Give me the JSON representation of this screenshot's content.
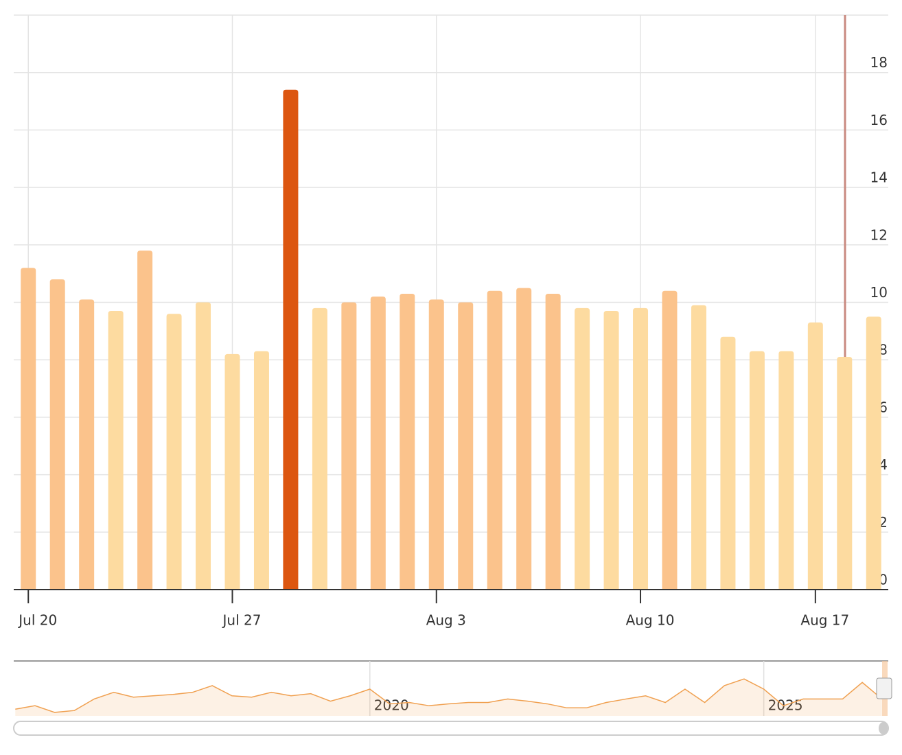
{
  "chart_data": {
    "type": "bar",
    "categories": [
      "Jul 20",
      null,
      null,
      null,
      null,
      null,
      null,
      "Jul 27",
      null,
      null,
      null,
      null,
      null,
      null,
      "Aug 3",
      null,
      null,
      null,
      null,
      null,
      null,
      "Aug 10",
      null,
      null,
      null,
      null,
      null,
      "Aug 17",
      null,
      null
    ],
    "values": [
      11.2,
      10.8,
      10.1,
      9.7,
      11.8,
      9.6,
      10.0,
      8.2,
      8.3,
      17.4,
      9.8,
      10.0,
      10.2,
      10.3,
      10.1,
      10.0,
      10.4,
      10.5,
      10.3,
      9.8,
      9.7,
      9.8,
      10.4,
      9.9,
      8.8,
      8.3,
      8.3,
      9.3,
      8.1,
      9.5
    ],
    "colors": [
      "#fbc38c",
      "#fbc38c",
      "#fbc38c",
      "#fddba0",
      "#fbc38c",
      "#fddba0",
      "#fddba0",
      "#fddba0",
      "#fddba0",
      "#dc5610",
      "#fddba0",
      "#fbc38c",
      "#fbc38c",
      "#fbc38c",
      "#fbc38c",
      "#fbc38c",
      "#fbc38c",
      "#fbc38c",
      "#fbc38c",
      "#fddba0",
      "#fddba0",
      "#fddba0",
      "#fbc38c",
      "#fddba0",
      "#fddba0",
      "#fddba0",
      "#fddba0",
      "#fddba0",
      "#fddba0",
      "#fddba0"
    ],
    "ylim": [
      0,
      20
    ],
    "yticks": [
      0,
      2,
      4,
      6,
      8,
      10,
      12,
      14,
      16,
      18
    ],
    "grid": true,
    "navigator": {
      "color": "#f0a050",
      "x": [
        2015.5,
        2015.75,
        2016,
        2016.25,
        2016.5,
        2016.75,
        2017,
        2017.25,
        2017.5,
        2017.75,
        2018,
        2018.25,
        2018.5,
        2018.75,
        2019,
        2019.25,
        2019.5,
        2019.75,
        2020,
        2020.25,
        2020.5,
        2020.75,
        2021,
        2021.25,
        2021.5,
        2021.75,
        2022,
        2022.25,
        2022.5,
        2022.75,
        2023,
        2023.25,
        2023.5,
        2023.75,
        2024,
        2024.25,
        2024.5,
        2024.75,
        2025,
        2025.25,
        2025.5,
        2025.75,
        2026,
        2026.25,
        2026.5
      ],
      "values": [
        2.5,
        3.8,
        1.3,
        2,
        6.3,
        8.8,
        7,
        7.5,
        8,
        8.8,
        11.3,
        7.5,
        7,
        8.8,
        7.5,
        8.3,
        5.5,
        7.5,
        10,
        4.5,
        5,
        3.8,
        4.5,
        5,
        5,
        6.3,
        5.5,
        4.5,
        3,
        3,
        5,
        6.3,
        7.5,
        5,
        10,
        5,
        11.3,
        13.8,
        10,
        3.8,
        6.3,
        6.3,
        6.3,
        12.5,
        6.3
      ],
      "xlim": [
        2015.48,
        2026.58
      ],
      "ylim": [
        0,
        20
      ],
      "xticks": [
        2020,
        2025
      ]
    }
  }
}
